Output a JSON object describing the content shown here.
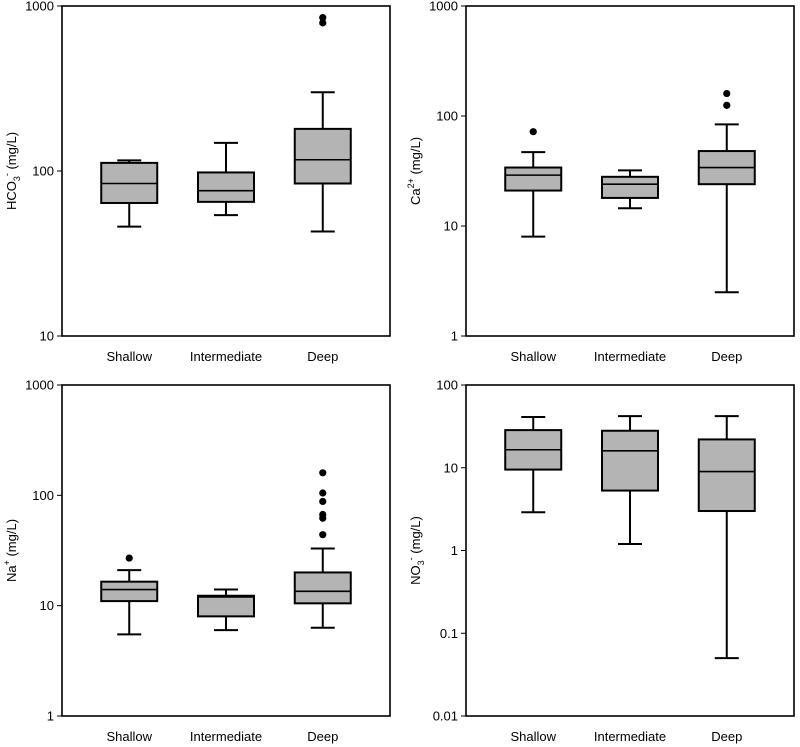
{
  "chart_data": [
    {
      "type": "box",
      "scale": "log",
      "ylim": [
        10,
        1000
      ],
      "yticks": [
        10,
        100,
        1000
      ],
      "ytick_labels": [
        "10",
        "100",
        "1000"
      ],
      "ylabel": {
        "base": "HCO",
        "sub": "3",
        "sup": "-",
        "unit": " (mg/L)"
      },
      "categories": [
        "Shallow",
        "Intermediate",
        "Deep"
      ],
      "boxes": [
        {
          "category": "Shallow",
          "whisker_low": 46,
          "q1": 64,
          "median": 84,
          "q3": 112,
          "whisker_high": 116,
          "outliers": []
        },
        {
          "category": "Intermediate",
          "whisker_low": 54,
          "q1": 65,
          "median": 76,
          "q3": 98,
          "whisker_high": 148,
          "outliers": []
        },
        {
          "category": "Deep",
          "whisker_low": 43,
          "q1": 84,
          "median": 117,
          "q3": 180,
          "whisker_high": 300,
          "outliers": [
            790,
            850
          ]
        }
      ]
    },
    {
      "type": "box",
      "scale": "log",
      "ylim": [
        1,
        1000
      ],
      "yticks": [
        1,
        10,
        100,
        1000
      ],
      "ytick_labels": [
        "1",
        "10",
        "100",
        "1000"
      ],
      "ylabel": {
        "base": "Ca",
        "sub": "",
        "sup": "2+",
        "unit": " (mg/L)"
      },
      "categories": [
        "Shallow",
        "Intermediate",
        "Deep"
      ],
      "boxes": [
        {
          "category": "Shallow",
          "whisker_low": 8,
          "q1": 21,
          "median": 29,
          "q3": 34,
          "whisker_high": 47,
          "outliers": [
            72
          ]
        },
        {
          "category": "Intermediate",
          "whisker_low": 14.5,
          "q1": 18,
          "median": 24,
          "q3": 28,
          "whisker_high": 32,
          "outliers": []
        },
        {
          "category": "Deep",
          "whisker_low": 2.5,
          "q1": 24,
          "median": 34,
          "q3": 48,
          "whisker_high": 84,
          "outliers": [
            125,
            160
          ]
        }
      ]
    },
    {
      "type": "box",
      "scale": "log",
      "ylim": [
        1,
        1000
      ],
      "yticks": [
        1,
        10,
        100,
        1000
      ],
      "ytick_labels": [
        "1",
        "10",
        "100",
        "1000"
      ],
      "ylabel": {
        "base": "Na",
        "sub": "",
        "sup": "+",
        "unit": " (mg/L)"
      },
      "categories": [
        "Shallow",
        "Intermediate",
        "Deep"
      ],
      "boxes": [
        {
          "category": "Shallow",
          "whisker_low": 5.5,
          "q1": 11,
          "median": 14,
          "q3": 16.5,
          "whisker_high": 21,
          "outliers": [
            27
          ]
        },
        {
          "category": "Intermediate",
          "whisker_low": 6,
          "q1": 8,
          "median": 12,
          "q3": 12.3,
          "whisker_high": 14,
          "outliers": []
        },
        {
          "category": "Deep",
          "whisker_low": 6.3,
          "q1": 10.5,
          "median": 13.5,
          "q3": 20,
          "whisker_high": 33,
          "outliers": [
            44,
            62,
            67,
            88,
            105,
            160
          ]
        }
      ]
    },
    {
      "type": "box",
      "scale": "log",
      "ylim": [
        0.01,
        100
      ],
      "yticks": [
        0.01,
        0.1,
        1,
        10,
        100
      ],
      "ytick_labels": [
        "0.01",
        "0.1",
        "1",
        "10",
        "100"
      ],
      "ylabel": {
        "base": "NO",
        "sub": "3",
        "sup": "-",
        "unit": " (mg/L)"
      },
      "categories": [
        "Shallow",
        "Intermediate",
        "Deep"
      ],
      "boxes": [
        {
          "category": "Shallow",
          "whisker_low": 2.9,
          "q1": 9.5,
          "median": 16.5,
          "q3": 28.5,
          "whisker_high": 41,
          "outliers": []
        },
        {
          "category": "Intermediate",
          "whisker_low": 1.2,
          "q1": 5.3,
          "median": 16,
          "q3": 28,
          "whisker_high": 42,
          "outliers": []
        },
        {
          "category": "Deep",
          "whisker_low": 0.05,
          "q1": 3,
          "median": 9,
          "q3": 22,
          "whisker_high": 42,
          "outliers": []
        }
      ]
    }
  ]
}
